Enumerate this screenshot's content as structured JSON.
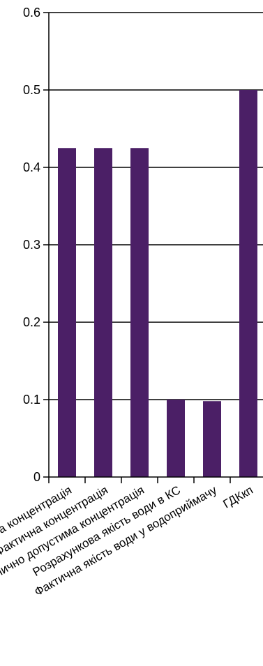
{
  "chart_data": {
    "type": "bar",
    "categories": [
      "Фонова концентрація",
      "Фактична концентрація",
      "Гранично допустима концентрація",
      "Розрахункова якість води в КС",
      "Фактична якість води у водоприймачу",
      "ГДКкп"
    ],
    "values": [
      0.425,
      0.425,
      0.425,
      0.1,
      0.098,
      0.5
    ],
    "ylim": [
      0,
      0.6
    ],
    "yticks": [
      "0",
      "0.1",
      "0.2",
      "0.3",
      "0.4",
      "0.5",
      "0.6"
    ],
    "ytick_values": [
      0,
      0.1,
      0.2,
      0.3,
      0.4,
      0.5,
      0.6
    ],
    "grid": true,
    "title": "",
    "xlabel": "",
    "ylabel": "",
    "bar_color": "#4b1f66",
    "grid_color": "#000000"
  }
}
